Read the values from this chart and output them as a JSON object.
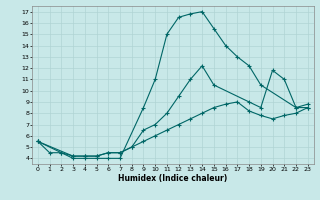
{
  "xlabel": "Humidex (Indice chaleur)",
  "bg_color": "#c8e8e8",
  "line_color": "#006666",
  "grid_color": "#b0d4d4",
  "xlim": [
    -0.5,
    23.5
  ],
  "ylim": [
    3.5,
    17.5
  ],
  "xticks": [
    0,
    1,
    2,
    3,
    4,
    5,
    6,
    7,
    8,
    9,
    10,
    11,
    12,
    13,
    14,
    15,
    16,
    17,
    18,
    19,
    20,
    21,
    22,
    23
  ],
  "yticks": [
    4,
    5,
    6,
    7,
    8,
    9,
    10,
    11,
    12,
    13,
    14,
    15,
    16,
    17
  ],
  "curve1_x": [
    0,
    1,
    2,
    3,
    4,
    5,
    6,
    7,
    9,
    10,
    11,
    12,
    13,
    14,
    15,
    16,
    17,
    18,
    19,
    22,
    23
  ],
  "curve1_y": [
    5.5,
    4.5,
    4.5,
    4.0,
    4.0,
    4.0,
    4.0,
    4.0,
    8.5,
    11.0,
    15.0,
    16.5,
    16.8,
    17.0,
    15.5,
    14.0,
    13.0,
    12.2,
    10.5,
    8.5,
    8.5
  ],
  "curve2_x": [
    0,
    2,
    3,
    4,
    5,
    6,
    7,
    8,
    9,
    10,
    11,
    12,
    13,
    14,
    15,
    18,
    19,
    20,
    21,
    22,
    23
  ],
  "curve2_y": [
    5.5,
    4.5,
    4.2,
    4.2,
    4.2,
    4.5,
    4.5,
    5.0,
    6.5,
    7.0,
    8.0,
    9.5,
    11.0,
    12.2,
    10.5,
    9.0,
    8.5,
    11.8,
    11.0,
    8.5,
    8.8
  ],
  "curve3_x": [
    0,
    3,
    4,
    5,
    6,
    7,
    8,
    9,
    10,
    11,
    12,
    13,
    14,
    15,
    16,
    17,
    18,
    19,
    20,
    21,
    22,
    23
  ],
  "curve3_y": [
    5.5,
    4.2,
    4.2,
    4.2,
    4.5,
    4.5,
    5.0,
    5.5,
    6.0,
    6.5,
    7.0,
    7.5,
    8.0,
    8.5,
    8.8,
    9.0,
    8.2,
    7.8,
    7.5,
    7.8,
    8.0,
    8.5
  ]
}
